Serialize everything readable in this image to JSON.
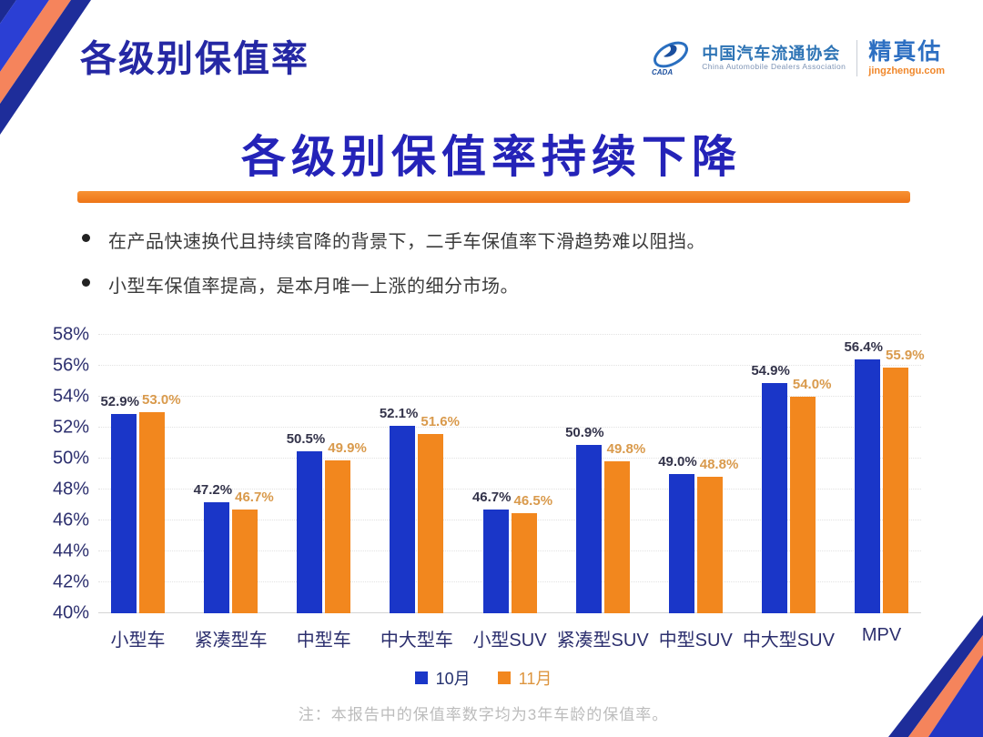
{
  "header": {
    "title": "各级别保值率"
  },
  "logo": {
    "org_cn": "中国汽车流通协会",
    "org_en": "China Automobile Dealers Association",
    "org_abbr": "CADA",
    "brand": "精真估",
    "brand_url": "jingzhengu.com"
  },
  "headline": {
    "title": "各级别保值率持续下降"
  },
  "bullets": [
    "在产品快速换代且持续官降的背景下，二手车保值率下滑趋势难以阻挡。",
    "小型车保值率提高，是本月唯一上涨的细分市场。"
  ],
  "chart_data": {
    "type": "bar",
    "title": "各级别保值率持续下降",
    "categories": [
      "小型车",
      "紧凑型车",
      "中型车",
      "中大型车",
      "小型SUV",
      "紧凑型SUV",
      "中型SUV",
      "中大型SUV",
      "MPV"
    ],
    "series": [
      {
        "name": "10月",
        "color": "#1a36c8",
        "label_color": "#33334a",
        "values": [
          52.9,
          47.2,
          50.5,
          52.1,
          46.7,
          50.9,
          49.0,
          54.9,
          56.4
        ]
      },
      {
        "name": "11月",
        "color": "#f2871e",
        "label_color": "#d99a4c",
        "values": [
          53.0,
          46.7,
          49.9,
          51.6,
          46.5,
          49.8,
          48.8,
          54.0,
          55.9
        ]
      }
    ],
    "ylim": [
      40,
      58
    ],
    "ytick_step": 2,
    "ytick_suffix": "%",
    "value_suffix": "%",
    "grid": true,
    "legend_position": "bottom",
    "legend_text_colors": [
      "#23306e",
      "#dd953f"
    ]
  },
  "note": "注：本报告中的保值率数字均为3年车龄的保值率。",
  "colors": {
    "accent_blue": "#2423b8",
    "accent_orange": "#ee7517",
    "bar_blue": "#1a36c8",
    "bar_orange": "#f2871e",
    "corner_navy": "#1e2d9a",
    "corner_royal": "#2b3fd4",
    "corner_salmon": "#f5845c"
  }
}
